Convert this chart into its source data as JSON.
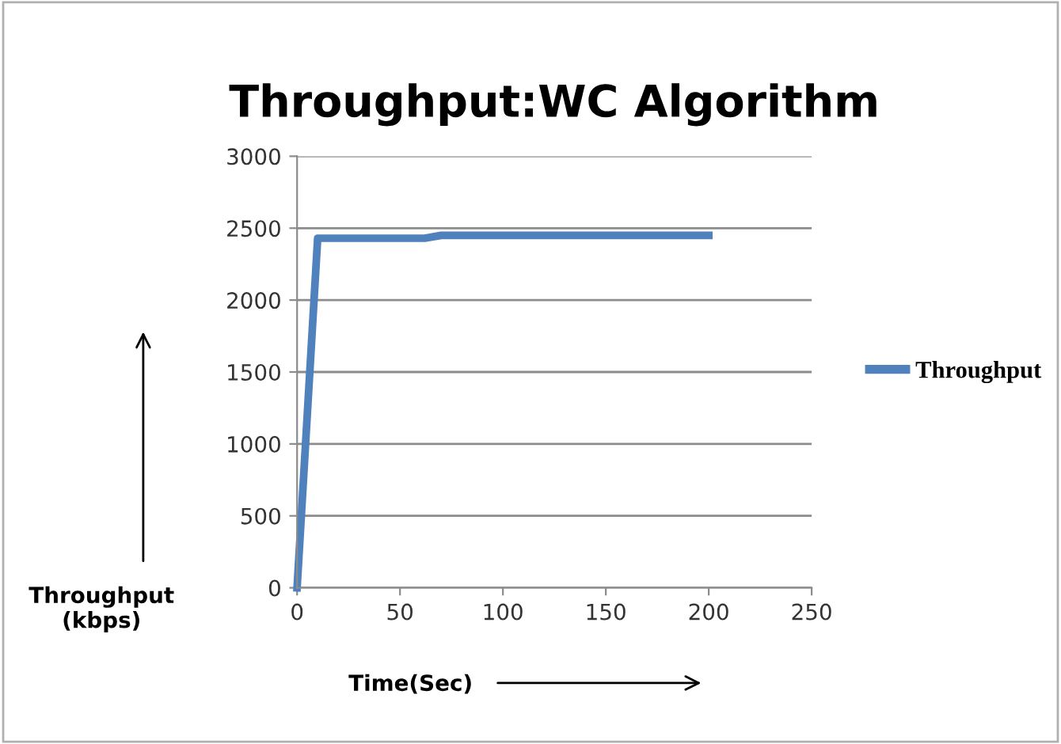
{
  "chart_data": {
    "type": "line",
    "title": "Throughput:WC Algorithm",
    "xlabel": "Time(Sec)",
    "ylabel": "Throughput\n(kbps)",
    "series": [
      {
        "name": "Throughput",
        "color": "#4f81bd",
        "x": [
          0,
          10,
          62,
          70,
          200
        ],
        "values": [
          0,
          2430,
          2430,
          2450,
          2450
        ]
      }
    ],
    "xlim": [
      0,
      250
    ],
    "xticks": [
      0,
      50,
      100,
      150,
      200,
      250
    ],
    "ylim": [
      0,
      3000
    ],
    "yticks": [
      0,
      500,
      1000,
      1500,
      2000,
      2500,
      3000
    ],
    "grid": "y",
    "legend": "right",
    "marker": "none",
    "line_style": "solid"
  }
}
